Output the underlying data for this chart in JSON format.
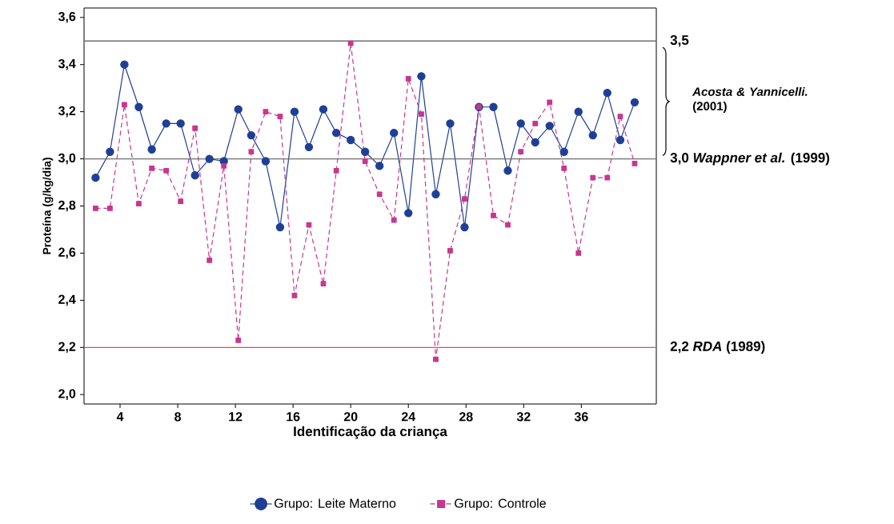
{
  "chart_data": {
    "type": "line",
    "xlabel": "Identificação da criança",
    "ylabel": "Proteína (g/kg/dia)",
    "x": [
      2.3,
      3.3,
      4.3,
      5.3,
      6.2,
      7.2,
      8.2,
      9.2,
      10.2,
      11.2,
      12.2,
      13.1,
      14.1,
      15.1,
      16.1,
      17.1,
      18.1,
      19.0,
      20.0,
      21.0,
      22.0,
      23.0,
      24.0,
      24.9,
      25.9,
      26.9,
      27.9,
      28.9,
      29.9,
      30.9,
      31.8,
      32.8,
      33.8,
      34.8,
      35.8,
      36.8,
      37.8,
      38.7,
      39.7
    ],
    "series": [
      {
        "name": "Grupo: Leite Materno",
        "color": "#1f3f95",
        "marker": "circle",
        "line_style": "solid",
        "values": [
          2.92,
          3.03,
          3.4,
          3.22,
          3.04,
          3.15,
          3.15,
          2.93,
          3.0,
          2.99,
          3.21,
          3.1,
          2.99,
          2.71,
          3.2,
          3.05,
          3.21,
          3.11,
          3.08,
          3.03,
          2.97,
          3.11,
          2.77,
          3.35,
          2.85,
          3.15,
          2.71,
          3.22,
          3.22,
          2.95,
          3.15,
          3.07,
          3.14,
          3.03,
          3.2,
          3.1,
          3.28,
          3.08,
          3.24
        ]
      },
      {
        "name": "Grupo: Controle",
        "color": "#c8368e",
        "marker": "square",
        "line_style": "dashed",
        "values": [
          2.79,
          2.79,
          3.23,
          2.81,
          2.96,
          2.95,
          2.82,
          3.13,
          2.57,
          2.97,
          2.23,
          3.03,
          3.2,
          3.18,
          2.42,
          2.72,
          2.47,
          2.95,
          3.49,
          2.99,
          2.85,
          2.74,
          3.34,
          3.19,
          2.15,
          2.61,
          2.83,
          3.22,
          2.76,
          2.72,
          3.03,
          3.15,
          3.24,
          2.96,
          2.6,
          2.92,
          2.92,
          3.18,
          2.98
        ]
      }
    ],
    "xlim": [
      1.5,
      41.2
    ],
    "ylim": [
      1.96,
      3.64
    ],
    "xticks": [
      4,
      8,
      12,
      16,
      20,
      24,
      28,
      32,
      36
    ],
    "yticks": [
      {
        "value": 2.0,
        "label": "2,0"
      },
      {
        "value": 2.2,
        "label": "2,2"
      },
      {
        "value": 2.4,
        "label": "2,4"
      },
      {
        "value": 2.6,
        "label": "2,6"
      },
      {
        "value": 2.8,
        "label": "2,8"
      },
      {
        "value": 3.0,
        "label": "3,0"
      },
      {
        "value": 3.2,
        "label": "3,2"
      },
      {
        "value": 3.4,
        "label": "3,4"
      },
      {
        "value": 3.6,
        "label": "3,6"
      }
    ],
    "ref_lines": [
      {
        "axis": "y",
        "value": 3.5,
        "label": "3,5",
        "color": "#6e6e6e"
      },
      {
        "axis": "y",
        "value": 3.0,
        "label": "3,0  *Wappner et al.* (1999)",
        "color": "#6e6e6e"
      },
      {
        "axis": "y",
        "value": 2.2,
        "label": "2,2      *RDA* (1989)",
        "color": "#ea4d43"
      }
    ],
    "annotations": [
      "*Acosta & Yannicelli.* (2001)"
    ],
    "grid": false,
    "legend": "bottom"
  }
}
